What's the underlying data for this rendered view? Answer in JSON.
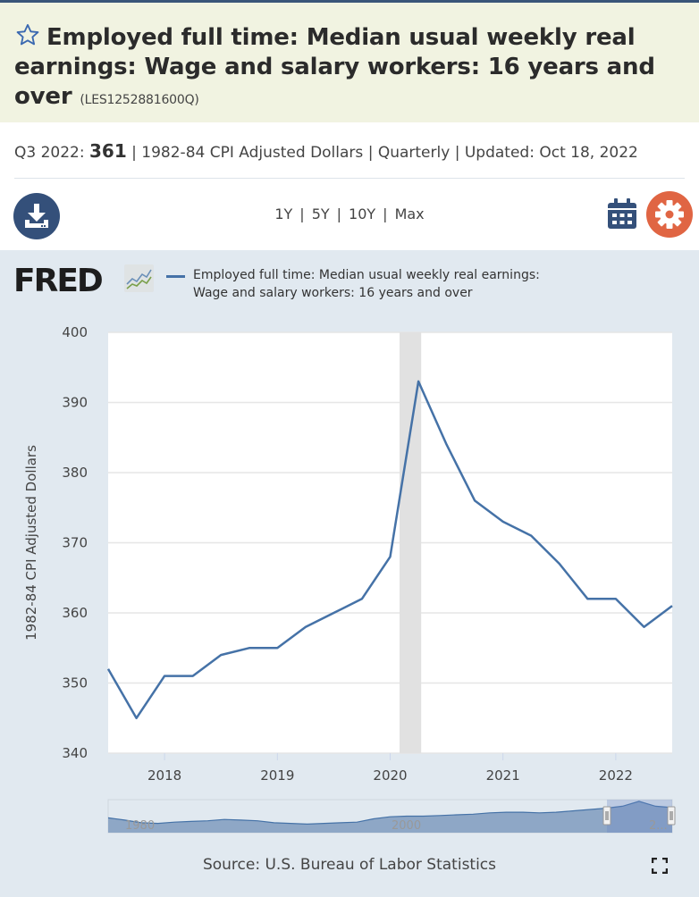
{
  "header": {
    "title": "Employed full time: Median usual weekly real earnings: Wage and salary workers: 16 years and over",
    "series_id": "(LES1252881600Q)",
    "favorite_icon": "star-outline-icon"
  },
  "meta": {
    "period_label": "Q3 2022:",
    "latest_value": "361",
    "units": "1982-84 CPI Adjusted Dollars",
    "frequency": "Quarterly",
    "updated_label": "Updated:",
    "updated_date": "Oct 18, 2022"
  },
  "toolbar": {
    "download_icon": "download-icon",
    "ranges": [
      "1Y",
      "5Y",
      "10Y",
      "Max"
    ],
    "calendar_icon": "calendar-icon",
    "settings_icon": "gear-icon",
    "colors": {
      "download": "#34507a",
      "calendar": "#34507a",
      "settings": "#e06543"
    }
  },
  "chart_panel": {
    "logo_text": "FRED",
    "source": "Source: U.S. Bureau of Labor Statistics",
    "fullscreen_icon": "fullscreen-icon",
    "navigator_labels": [
      "1980",
      "2000",
      "2..."
    ]
  },
  "chart_data": {
    "type": "line",
    "title": "",
    "xlabel": "",
    "ylabel": "1982-84 CPI Adjusted Dollars",
    "ylim": [
      340,
      400
    ],
    "yticks": [
      340,
      350,
      360,
      370,
      380,
      390,
      400
    ],
    "xticks": [
      "2018",
      "2019",
      "2020",
      "2021",
      "2022"
    ],
    "grid": true,
    "legend": "top",
    "line_color": "#4572a7",
    "recession_shading": [
      {
        "start": "2020-02",
        "end": "2020-04"
      }
    ],
    "x": [
      "2017-Q3",
      "2017-Q4",
      "2018-Q1",
      "2018-Q2",
      "2018-Q3",
      "2018-Q4",
      "2019-Q1",
      "2019-Q2",
      "2019-Q3",
      "2019-Q4",
      "2020-Q1",
      "2020-Q2",
      "2020-Q3",
      "2020-Q4",
      "2021-Q1",
      "2021-Q2",
      "2021-Q3",
      "2021-Q4",
      "2022-Q1",
      "2022-Q2",
      "2022-Q3"
    ],
    "series": [
      {
        "name": "Employed full time: Median usual weekly real earnings: Wage and salary workers: 16 years and over",
        "values": [
          352,
          345,
          351,
          351,
          354,
          355,
          355,
          358,
          360,
          362,
          368,
          393,
          384,
          376,
          373,
          371,
          367,
          362,
          362,
          358,
          361
        ]
      }
    ]
  }
}
